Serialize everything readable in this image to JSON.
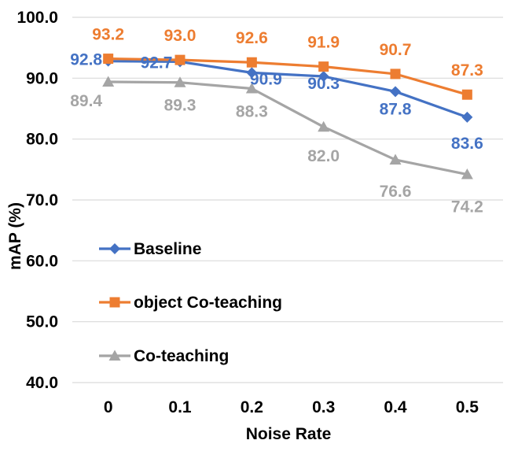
{
  "chart_data": {
    "type": "line",
    "title": "",
    "xlabel": "Noise Rate",
    "ylabel": "mAP (%)",
    "categories": [
      "0",
      "0.1",
      "0.2",
      "0.3",
      "0.4",
      "0.5"
    ],
    "ylim": [
      40,
      100
    ],
    "yticks": [
      "40.0",
      "50.0",
      "60.0",
      "70.0",
      "80.0",
      "90.0",
      "100.0"
    ],
    "grid": "horizontal",
    "legend_position": "inside-left",
    "series": [
      {
        "name": "Baseline",
        "color": "#4472C4",
        "marker": "diamond",
        "values": [
          92.8,
          92.7,
          90.9,
          90.3,
          87.8,
          83.6
        ],
        "labels": [
          "92.8",
          "92.7",
          "90.9",
          "90.3",
          "87.8",
          "83.6"
        ]
      },
      {
        "name": "object Co-teaching",
        "color": "#ED7D31",
        "marker": "square",
        "values": [
          93.2,
          93.0,
          92.6,
          91.9,
          90.7,
          87.3
        ],
        "labels": [
          "93.2",
          "93.0",
          "92.6",
          "91.9",
          "90.7",
          "87.3"
        ]
      },
      {
        "name": "Co-teaching",
        "color": "#A5A5A5",
        "marker": "triangle",
        "values": [
          89.4,
          89.3,
          88.3,
          82.0,
          76.6,
          74.2
        ],
        "labels": [
          "89.4",
          "89.3",
          "88.3",
          "82.0",
          "76.6",
          "74.2"
        ]
      }
    ]
  }
}
